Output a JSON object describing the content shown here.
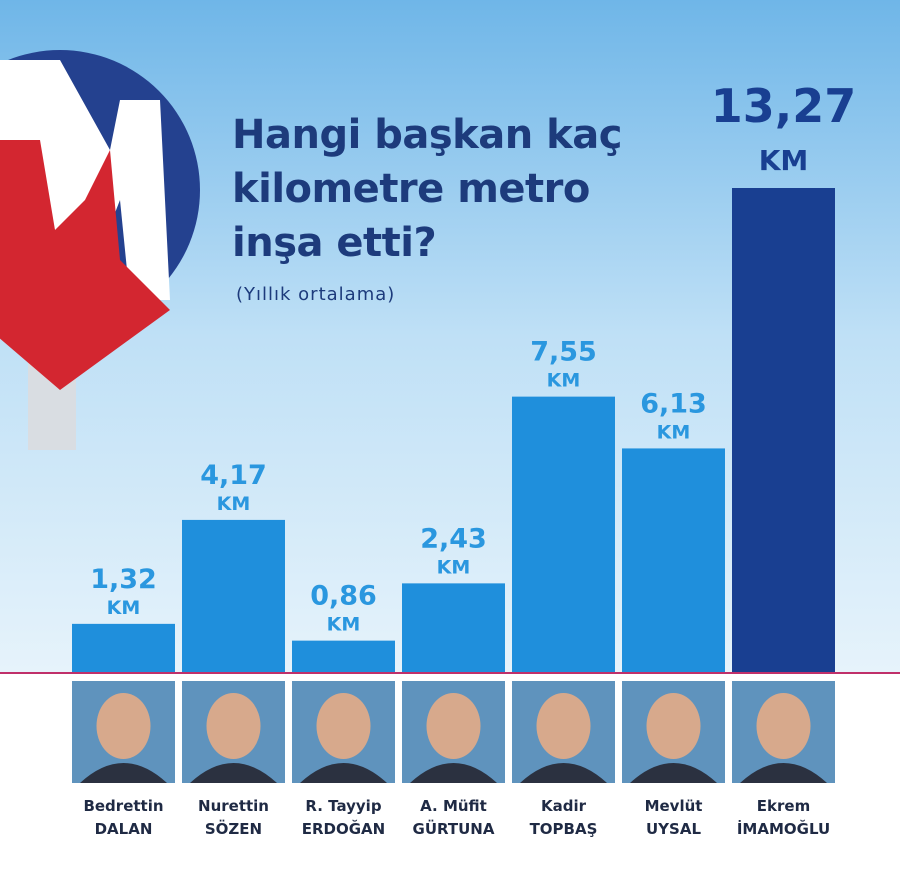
{
  "chart_data": {
    "type": "bar",
    "title": "Hangi başkan kaç kilometre metro inşa etti?",
    "subtitle": "(Yıllık ortalama)",
    "unit": "KM",
    "categories": [
      [
        "Bedrettin",
        "DALAN"
      ],
      [
        "Nurettin",
        "SÖZEN"
      ],
      [
        "R. Tayyip",
        "ERDOĞAN"
      ],
      [
        "A. Müfit",
        "GÜRTUNA"
      ],
      [
        "Kadir",
        "TOPBAŞ"
      ],
      [
        "Mevlüt",
        "UYSAL"
      ],
      [
        "Ekrem",
        "İMAMOĞLU"
      ]
    ],
    "values": [
      1.32,
      4.17,
      0.86,
      2.43,
      7.55,
      6.13,
      13.27
    ],
    "value_labels": [
      "1,32",
      "4,17",
      "0,86",
      "2,43",
      "7,55",
      "6,13",
      "13,27"
    ],
    "colors": [
      "#1f8fdc",
      "#1f8fdc",
      "#1f8fdc",
      "#1f8fdc",
      "#1f8fdc",
      "#1f8fdc",
      "#193f91"
    ]
  }
}
